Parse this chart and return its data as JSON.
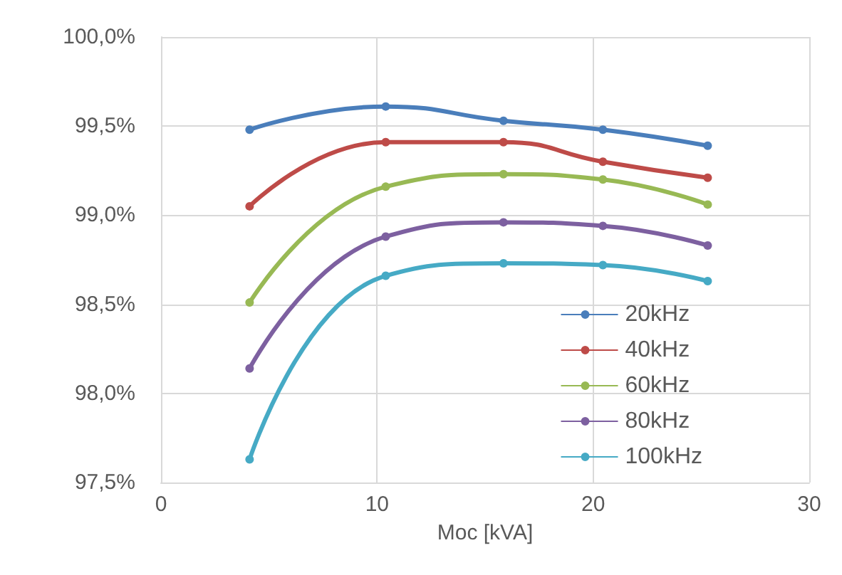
{
  "chart_data": {
    "type": "line",
    "xlabel": "Moc [kVA]",
    "x": [
      4.1,
      10.4,
      15.85,
      20.45,
      25.3
    ],
    "series": [
      {
        "name": "20kHz",
        "color": "#4a7ebb",
        "values": [
          99.48,
          99.61,
          99.53,
          99.48,
          99.39
        ]
      },
      {
        "name": "40kHz",
        "color": "#be4b48",
        "values": [
          99.05,
          99.41,
          99.41,
          99.3,
          99.21
        ]
      },
      {
        "name": "60kHz",
        "color": "#98b954",
        "values": [
          98.51,
          99.16,
          99.23,
          99.2,
          99.06
        ]
      },
      {
        "name": "80kHz",
        "color": "#7d60a0",
        "values": [
          98.14,
          98.88,
          98.96,
          98.94,
          98.83
        ]
      },
      {
        "name": "100kHz",
        "color": "#46aac5",
        "values": [
          97.63,
          98.66,
          98.73,
          98.72,
          98.63
        ]
      }
    ],
    "xlim": [
      0,
      30
    ],
    "xticks": [
      0,
      10,
      20,
      30
    ],
    "ylim": [
      97.5,
      100
    ],
    "yticks": [
      {
        "value": 97.5,
        "label": "97,5%"
      },
      {
        "value": 98,
        "label": "98,0%"
      },
      {
        "value": 98.5,
        "label": "98,5%"
      },
      {
        "value": 99,
        "label": "99,0%"
      },
      {
        "value": 99.5,
        "label": "99,5%"
      },
      {
        "value": 100,
        "label": "100,0%"
      }
    ],
    "grid": true,
    "legend": "bottom right",
    "marker": "circle",
    "line_style": "solid"
  }
}
